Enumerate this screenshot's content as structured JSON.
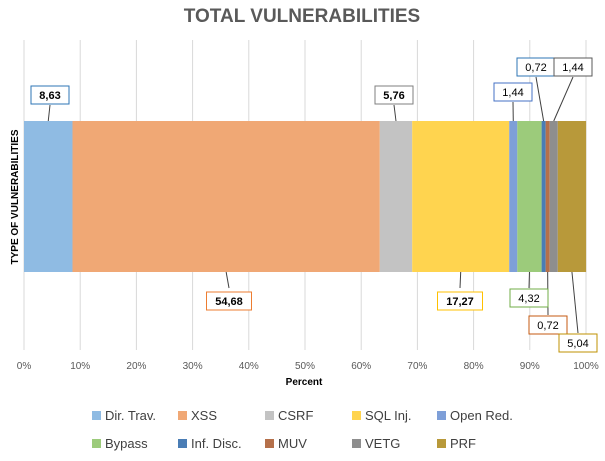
{
  "chart_data": {
    "type": "bar",
    "orientation": "horizontal",
    "stacked": true,
    "title": "TOTAL VULNERABILITIES",
    "xlabel": "Percent",
    "ylabel": "TYPE OF VULNERABILITIES",
    "xlim": [
      0,
      100
    ],
    "x_ticks": [
      "0%",
      "10%",
      "20%",
      "30%",
      "40%",
      "50%",
      "60%",
      "70%",
      "80%",
      "90%",
      "100%"
    ],
    "grid": "vertical",
    "legend_position": "bottom",
    "series": [
      {
        "name": "Dir. Trav.",
        "value": 8.63,
        "label": "8,63",
        "color": "#8FBBE3",
        "label_border": "#2E75B6"
      },
      {
        "name": "XSS",
        "value": 54.68,
        "label": "54,68",
        "color": "#F0A875",
        "label_border": "#ED7D31"
      },
      {
        "name": "CSRF",
        "value": 5.76,
        "label": "5,76",
        "color": "#C3C3C3",
        "label_border": "#7F7F7F"
      },
      {
        "name": "SQL Inj.",
        "value": 17.27,
        "label": "17,27",
        "color": "#FFD44F",
        "label_border": "#FFC000"
      },
      {
        "name": "Open Red.",
        "value": 1.44,
        "label": "1,44",
        "color": "#7E9FD8",
        "label_border": "#4472C4"
      },
      {
        "name": "Bypass",
        "value": 4.32,
        "label": "4,32",
        "color": "#9CCB7B",
        "label_border": "#70AD47"
      },
      {
        "name": "Inf. Disc.",
        "value": 0.72,
        "label": "0,72",
        "color": "#4A7DB5",
        "label_border": "#2E75B6"
      },
      {
        "name": "MUV",
        "value": 0.72,
        "label": "0,72",
        "color": "#B5704A",
        "label_border": "#C55A11"
      },
      {
        "name": "VETG",
        "value": 1.44,
        "label": "1,44",
        "color": "#8E8E8E",
        "label_border": "#595959"
      },
      {
        "name": "PRF",
        "value": 5.04,
        "label": "5,04",
        "color": "#B8993A",
        "label_border": "#BF9000"
      }
    ]
  }
}
